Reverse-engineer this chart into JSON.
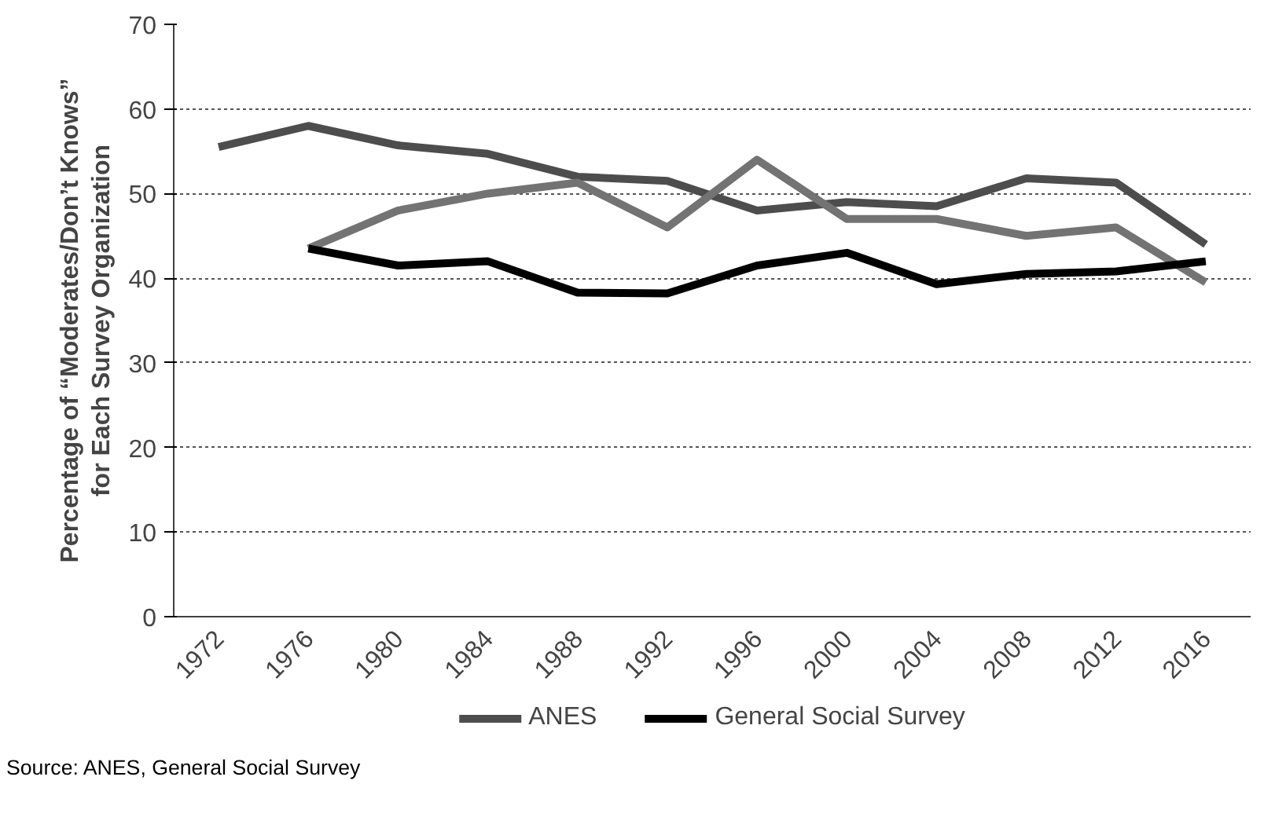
{
  "chart_data": {
    "type": "line",
    "ylabel": "Percentage of “Moderates/Don’t Knows”\nfor Each Survey Organization",
    "categories": [
      "1972",
      "1976",
      "1980",
      "1984",
      "1988",
      "1992",
      "1996",
      "2000",
      "2004",
      "2008",
      "2012",
      "2016"
    ],
    "series": [
      {
        "name": "ANES",
        "color": "#4d4d4d",
        "values": [
          55.5,
          58,
          55.7,
          54.7,
          52,
          51.5,
          48,
          49,
          48.5,
          51.8,
          51.3,
          44
        ]
      },
      {
        "color": "#737373",
        "values": [
          null,
          43.5,
          48,
          50,
          51.3,
          46,
          54,
          47,
          47,
          45,
          46,
          39.5
        ]
      },
      {
        "name": "General Social Survey",
        "color": "#000000",
        "values": [
          null,
          43.5,
          41.5,
          42,
          38.3,
          38.2,
          41.5,
          43,
          39.3,
          40.5,
          40.8,
          42
        ]
      }
    ],
    "ylim": [
      0,
      70
    ],
    "yticks": [
      0,
      10,
      20,
      30,
      40,
      50,
      60,
      70
    ],
    "grid": "y",
    "legend": "bottom",
    "marker": "none",
    "line_style": "solid",
    "annotations": [
      "Source: ANES, General Social Survey"
    ]
  }
}
